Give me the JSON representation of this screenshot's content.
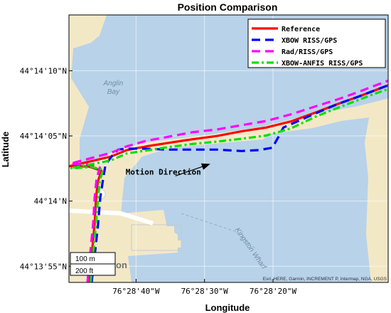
{
  "chart_data": {
    "type": "line",
    "title": "Position Comparison",
    "xlabel": "Longitude",
    "ylabel": "Latitude",
    "xlim": [
      -76.4805,
      -76.46755
    ],
    "ylim": [
      44.2316,
      44.2373
    ],
    "x_ticks": [
      {
        "value": -76.477778,
        "label": "76°28'40\"W"
      },
      {
        "value": -76.475,
        "label": "76°28'30\"W"
      },
      {
        "value": -76.472222,
        "label": "76°28'20\"W"
      }
    ],
    "y_ticks": [
      {
        "value": 44.236111,
        "label": "44°14'10\"N"
      },
      {
        "value": 44.234722,
        "label": "44°14'05\"N"
      },
      {
        "value": 44.233333,
        "label": "44°14'N"
      },
      {
        "value": 44.231944,
        "label": "44°13'55\"N"
      }
    ],
    "grid": true,
    "legend_position": "top-right",
    "series": [
      {
        "name": "Reference",
        "color": "#ff0000",
        "dash": "solid",
        "points": [
          [
            -76.47968,
            44.2316
          ],
          [
            -76.47957,
            44.2322
          ],
          [
            -76.47946,
            44.23285
          ],
          [
            -76.4794,
            44.2334
          ],
          [
            -76.47933,
            44.23375
          ],
          [
            -76.47918,
            44.23398
          ],
          [
            -76.4797,
            44.23407
          ],
          [
            -76.48045,
            44.23408
          ],
          [
            -76.4788,
            44.23428
          ],
          [
            -76.47815,
            44.23442
          ],
          [
            -76.47735,
            44.2345
          ],
          [
            -76.4765,
            44.23457
          ],
          [
            -76.4755,
            44.23465
          ],
          [
            -76.4745,
            44.23472
          ],
          [
            -76.4735,
            44.23482
          ],
          [
            -76.4725,
            44.2349
          ],
          [
            -76.4715,
            44.23503
          ],
          [
            -76.4705,
            44.23522
          ],
          [
            -76.4696,
            44.2354
          ],
          [
            -76.4688,
            44.23555
          ],
          [
            -76.4682,
            44.23567
          ],
          [
            -76.46755,
            44.2358
          ]
        ]
      },
      {
        "name": "XBOW RISS/GPS",
        "color": "#0000ff",
        "dash": "dashed",
        "points": [
          [
            -76.47958,
            44.2316
          ],
          [
            -76.47945,
            44.2322
          ],
          [
            -76.47932,
            44.23283
          ],
          [
            -76.47923,
            44.2334
          ],
          [
            -76.47912,
            44.23378
          ],
          [
            -76.47902,
            44.2341
          ],
          [
            -76.47875,
            44.2343
          ],
          [
            -76.4785,
            44.23443
          ],
          [
            -76.47815,
            44.23445
          ],
          [
            -76.4775,
            44.23445
          ],
          [
            -76.4765,
            44.23443
          ],
          [
            -76.4755,
            44.23443
          ],
          [
            -76.4745,
            44.23443
          ],
          [
            -76.4735,
            44.2344
          ],
          [
            -76.4728,
            44.23442
          ],
          [
            -76.47225,
            44.23447
          ],
          [
            -76.472,
            44.2347
          ],
          [
            -76.4718,
            44.2349
          ],
          [
            -76.4705,
            44.2352
          ],
          [
            -76.4696,
            44.2354
          ],
          [
            -76.4688,
            44.23555
          ],
          [
            -76.46755,
            44.2358
          ]
        ]
      },
      {
        "name": "Rad/RISS/GPS",
        "color": "#ff00ff",
        "dash": "dashed",
        "points": [
          [
            -76.47975,
            44.2316
          ],
          [
            -76.47964,
            44.2322
          ],
          [
            -76.47952,
            44.23285
          ],
          [
            -76.47946,
            44.2334
          ],
          [
            -76.47938,
            44.2338
          ],
          [
            -76.47925,
            44.23405
          ],
          [
            -76.4798,
            44.23412
          ],
          [
            -76.48045,
            44.23413
          ],
          [
            -76.4788,
            44.23436
          ],
          [
            -76.47815,
            44.2345
          ],
          [
            -76.47735,
            44.23462
          ],
          [
            -76.4765,
            44.2347
          ],
          [
            -76.4755,
            44.2348
          ],
          [
            -76.4745,
            44.23486
          ],
          [
            -76.4735,
            44.23495
          ],
          [
            -76.4725,
            44.23504
          ],
          [
            -76.4715,
            44.23518
          ],
          [
            -76.4705,
            44.23535
          ],
          [
            -76.4696,
            44.2355
          ],
          [
            -76.4688,
            44.23565
          ],
          [
            -76.4682,
            44.23577
          ],
          [
            -76.46755,
            44.2359
          ]
        ]
      },
      {
        "name": "XBOW-ANFIS RISS/GPS",
        "color": "#00e000",
        "dash": "dashdot",
        "points": [
          [
            -76.47962,
            44.2316
          ],
          [
            -76.47952,
            44.2322
          ],
          [
            -76.4794,
            44.23285
          ],
          [
            -76.47932,
            44.2334
          ],
          [
            -76.47925,
            44.23376
          ],
          [
            -76.47912,
            44.234
          ],
          [
            -76.4796,
            44.23406
          ],
          [
            -76.48045,
            44.23403
          ],
          [
            -76.4788,
            44.2342
          ],
          [
            -76.47815,
            44.23435
          ],
          [
            -76.4775,
            44.2344
          ],
          [
            -76.4765,
            44.23448
          ],
          [
            -76.4755,
            44.23455
          ],
          [
            -76.4745,
            44.2346
          ],
          [
            -76.4735,
            44.23466
          ],
          [
            -76.4725,
            44.23473
          ],
          [
            -76.4715,
            44.23488
          ],
          [
            -76.4705,
            44.23513
          ],
          [
            -76.4696,
            44.23532
          ],
          [
            -76.4688,
            44.23548
          ],
          [
            -76.4682,
            44.2356
          ],
          [
            -76.46755,
            44.23572
          ]
        ]
      }
    ],
    "annotations": [
      {
        "text": "Motion Direction",
        "from": [
          -76.4782,
          44.2339
        ],
        "to": [
          -76.4748,
          44.23412
        ]
      }
    ],
    "map_labels": [
      {
        "text": "Anglin Bay",
        "lon": -76.4787,
        "lat": 44.2358
      },
      {
        "text": "Kingston Wharf",
        "lon": -76.4732,
        "lat": 44.2323
      },
      {
        "text": "igston",
        "lon": -76.4787,
        "lat": 44.2319
      }
    ],
    "scale_bar": [
      "100 m",
      "200 ft"
    ],
    "attribution": "Esri, HERE, Garmin, INCREMENT P, Intermap, NGA, USGS"
  }
}
